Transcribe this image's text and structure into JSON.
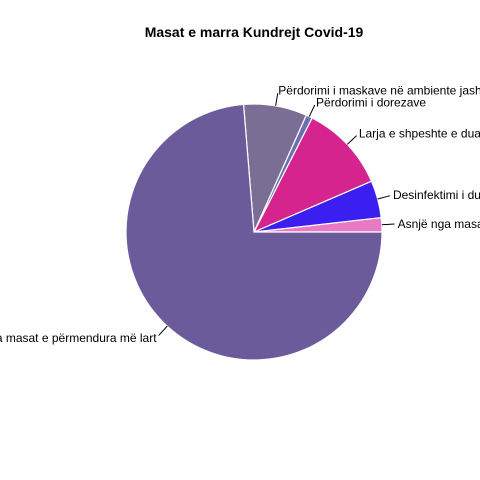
{
  "chart_data": {
    "type": "pie",
    "title": "Masat e marra Kundrejt Covid-19",
    "direction": "counterclockwise",
    "start": "3 o'clock",
    "slices": [
      {
        "label": "Asnjë nga masat e përmendura më lart",
        "value": 1.8,
        "color": "#e879c4"
      },
      {
        "label": "Desinfektimi i duarve",
        "value": 4.7,
        "color": "#3a1ff0"
      },
      {
        "label": "Larja e shpeshte e duarve",
        "value": 11.0,
        "color": "#d6248f"
      },
      {
        "label": "Përdorimi i dorezave",
        "value": 0.8,
        "color": "#6a6fb0"
      },
      {
        "label": "Përdorimi i maskave në ambiente jashtë",
        "value": 8.0,
        "color": "#7b6e94"
      },
      {
        "label": "Të gjitha masat e përmendura më lart",
        "value": 73.7,
        "color": "#6c5b9b"
      }
    ]
  }
}
